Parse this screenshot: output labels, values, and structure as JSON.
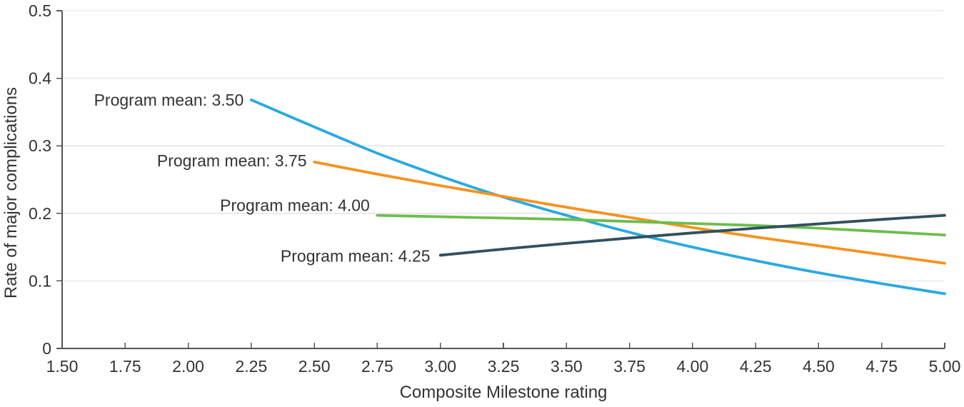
{
  "chart_data": {
    "type": "line",
    "title": "",
    "xlabel": "Composite Milestone rating",
    "ylabel": "Rate of major complications",
    "xlim": [
      1.5,
      5.0
    ],
    "ylim": [
      0,
      0.5
    ],
    "xticks": [
      1.5,
      1.75,
      2.0,
      2.25,
      2.5,
      2.75,
      3.0,
      3.25,
      3.5,
      3.75,
      4.0,
      4.25,
      4.5,
      4.75,
      5.0
    ],
    "xtick_labels": [
      "1.50",
      "1.75",
      "2.00",
      "2.25",
      "2.50",
      "2.75",
      "3.00",
      "3.25",
      "3.50",
      "3.75",
      "4.00",
      "4.25",
      "4.50",
      "4.75",
      "5.00"
    ],
    "yticks": [
      0,
      0.1,
      0.2,
      0.3,
      0.4,
      0.5
    ],
    "ytick_labels": [
      "0",
      "0.1",
      "0.2",
      "0.3",
      "0.4",
      "0.5"
    ],
    "grid": "horizontal-gridlines-at-0.1-steps-except-zero",
    "legend": "inline-line-labels",
    "series": [
      {
        "name": "program-mean-3.50",
        "label": "Program mean: 3.50",
        "color": "#29a9e1",
        "x": [
          2.25,
          2.5,
          2.75,
          3.0,
          3.25,
          3.5,
          3.75,
          4.0,
          4.25,
          4.5,
          4.75,
          5.0
        ],
        "y": [
          0.368,
          0.328,
          0.289,
          0.255,
          0.224,
          0.197,
          0.172,
          0.15,
          0.13,
          0.112,
          0.096,
          0.081
        ],
        "label_anchor": {
          "x": 2.22,
          "y": 0.368
        }
      },
      {
        "name": "program-mean-3.75",
        "label": "Program mean: 3.75",
        "color": "#f6921e",
        "x": [
          2.5,
          2.75,
          3.0,
          3.25,
          3.5,
          3.75,
          4.0,
          4.25,
          4.5,
          4.75,
          5.0
        ],
        "y": [
          0.276,
          0.258,
          0.241,
          0.225,
          0.209,
          0.194,
          0.179,
          0.165,
          0.152,
          0.139,
          0.126
        ],
        "label_anchor": {
          "x": 2.47,
          "y": 0.278
        }
      },
      {
        "name": "program-mean-4.00",
        "label": "Program mean: 4.00",
        "color": "#6cbe4c",
        "x": [
          2.75,
          3.0,
          3.25,
          3.5,
          3.75,
          4.0,
          4.25,
          4.5,
          4.75,
          5.0
        ],
        "y": [
          0.197,
          0.195,
          0.193,
          0.191,
          0.188,
          0.185,
          0.182,
          0.178,
          0.173,
          0.168
        ],
        "label_anchor": {
          "x": 2.72,
          "y": 0.212
        }
      },
      {
        "name": "program-mean-4.25",
        "label": "Program mean: 4.25",
        "color": "#31505f",
        "x": [
          3.0,
          3.25,
          3.5,
          3.75,
          4.0,
          4.25,
          4.5,
          4.75,
          5.0
        ],
        "y": [
          0.138,
          0.147,
          0.1555,
          0.1635,
          0.171,
          0.178,
          0.1845,
          0.191,
          0.197
        ],
        "label_anchor": {
          "x": 2.96,
          "y": 0.137
        }
      }
    ],
    "colors": {
      "axis": "#55565a",
      "grid": "#e3e3e3",
      "text": "#333333",
      "background": "#ffffff"
    }
  }
}
